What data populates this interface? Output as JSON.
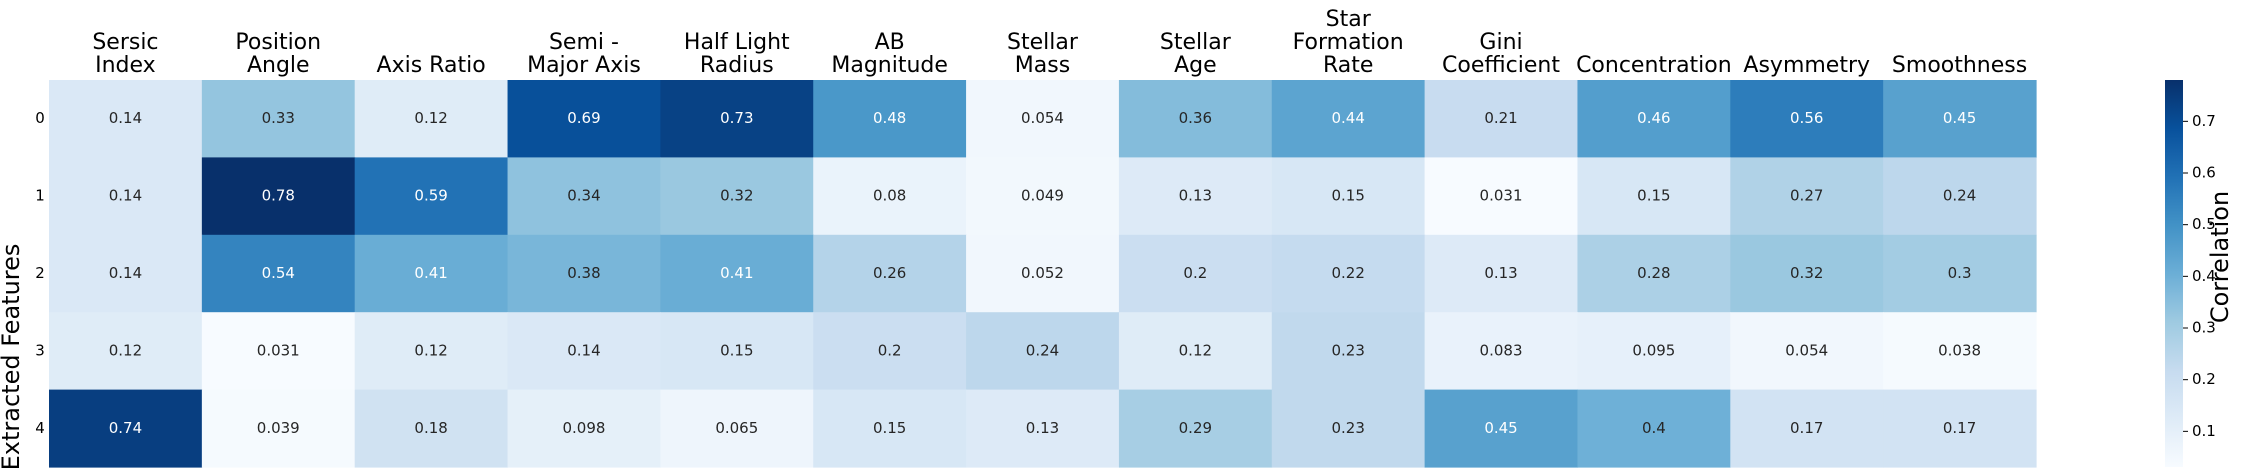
{
  "chart_data": {
    "type": "heatmap",
    "title": "",
    "xlabel": "",
    "ylabel": "Extracted Features",
    "colorbar_label": "Correlation",
    "colormap": "Blues",
    "colors": {
      "low": "#f7fbff",
      "high": "#08306b"
    },
    "vmin": 0.031,
    "vmax": 0.78,
    "columns": [
      [
        "Sersic",
        "Index"
      ],
      [
        "Position",
        "Angle"
      ],
      [
        "Axis Ratio"
      ],
      [
        "Semi -",
        "Major Axis"
      ],
      [
        "Half Light",
        "Radius"
      ],
      [
        "AB",
        "Magnitude"
      ],
      [
        "Stellar",
        "Mass"
      ],
      [
        "Stellar",
        "Age"
      ],
      [
        "Star",
        "Formation",
        "Rate"
      ],
      [
        "Gini",
        "Coefficient"
      ],
      [
        "Concentration"
      ],
      [
        "Asymmetry"
      ],
      [
        "Smoothness"
      ]
    ],
    "rows": [
      "0",
      "1",
      "2",
      "3",
      "4"
    ],
    "values": [
      [
        0.14,
        0.33,
        0.12,
        0.69,
        0.73,
        0.48,
        0.054,
        0.36,
        0.44,
        0.21,
        0.46,
        0.56,
        0.45
      ],
      [
        0.14,
        0.78,
        0.59,
        0.34,
        0.32,
        0.08,
        0.049,
        0.13,
        0.15,
        0.031,
        0.15,
        0.27,
        0.24
      ],
      [
        0.14,
        0.54,
        0.41,
        0.38,
        0.41,
        0.26,
        0.052,
        0.2,
        0.22,
        0.13,
        0.28,
        0.32,
        0.3
      ],
      [
        0.12,
        0.031,
        0.12,
        0.14,
        0.15,
        0.2,
        0.24,
        0.12,
        0.23,
        0.083,
        0.095,
        0.054,
        0.038
      ],
      [
        0.74,
        0.039,
        0.18,
        0.098,
        0.065,
        0.15,
        0.13,
        0.29,
        0.23,
        0.45,
        0.4,
        0.17,
        0.17
      ]
    ],
    "value_labels": [
      [
        "0.14",
        "0.33",
        "0.12",
        "0.69",
        "0.73",
        "0.48",
        "0.054",
        "0.36",
        "0.44",
        "0.21",
        "0.46",
        "0.56",
        "0.45"
      ],
      [
        "0.14",
        "0.78",
        "0.59",
        "0.34",
        "0.32",
        "0.08",
        "0.049",
        "0.13",
        "0.15",
        "0.031",
        "0.15",
        "0.27",
        "0.24"
      ],
      [
        "0.14",
        "0.54",
        "0.41",
        "0.38",
        "0.41",
        "0.26",
        "0.052",
        "0.2",
        "0.22",
        "0.13",
        "0.28",
        "0.32",
        "0.3"
      ],
      [
        "0.12",
        "0.031",
        "0.12",
        "0.14",
        "0.15",
        "0.2",
        "0.24",
        "0.12",
        "0.23",
        "0.083",
        "0.095",
        "0.054",
        "0.038"
      ],
      [
        "0.74",
        "0.039",
        "0.18",
        "0.098",
        "0.065",
        "0.15",
        "0.13",
        "0.29",
        "0.23",
        "0.45",
        "0.4",
        "0.17",
        "0.17"
      ]
    ],
    "colorbar_ticks": [
      0.1,
      0.2,
      0.3,
      0.4,
      0.5,
      0.6,
      0.7
    ],
    "colorbar_tick_labels": [
      "0.1",
      "0.2",
      "0.3",
      "0.4",
      "0.5",
      "0.6",
      "0.7"
    ],
    "grid": false,
    "legend": "colorbar-right"
  }
}
